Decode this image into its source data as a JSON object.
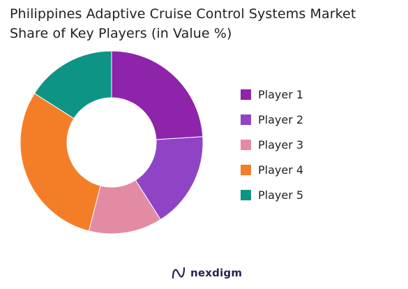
{
  "title_lines": [
    "Philippines Adaptive Cruise Control Systems Market",
    "Share of Key Players (in Value %)"
  ],
  "chart_data": {
    "type": "pie",
    "variant": "donut",
    "title": "Philippines Adaptive Cruise Control Systems Market Share of Key Players (in Value %)",
    "categories": [
      "Player 1",
      "Player 2",
      "Player 3",
      "Player 4",
      "Player 5"
    ],
    "values": [
      24,
      17,
      13,
      30,
      16
    ],
    "colors": [
      "#8E24AA",
      "#8E44C4",
      "#E38BA3",
      "#F47E27",
      "#0E9484"
    ],
    "legend": "right"
  },
  "brand": {
    "name": "nexdigm",
    "icon": "nexdigm-logo-icon"
  }
}
